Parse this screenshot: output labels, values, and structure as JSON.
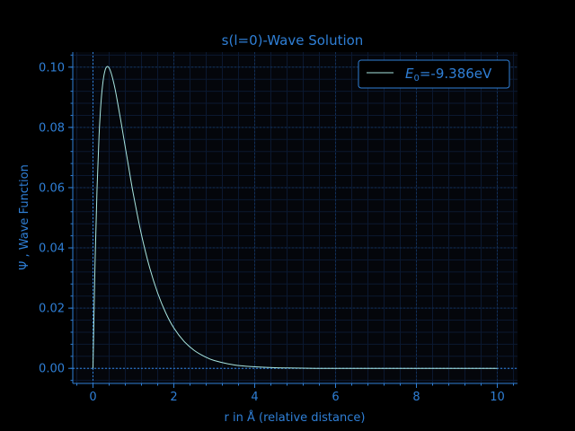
{
  "chart_data": {
    "type": "line",
    "title": "s(l=0)-Wave Solution",
    "xlabel": "r in Å (relative distance)",
    "ylabel": "Ψ , Wave Function",
    "xlim": [
      -0.5,
      10.5
    ],
    "ylim": [
      -0.005,
      0.105
    ],
    "xticks": [
      0,
      2,
      4,
      6,
      8,
      10
    ],
    "yticks": [
      0.0,
      0.02,
      0.04,
      0.06,
      0.08,
      0.1
    ],
    "xtick_labels": [
      "0",
      "2",
      "4",
      "6",
      "8",
      "10"
    ],
    "ytick_labels": [
      "0.00",
      "0.02",
      "0.04",
      "0.06",
      "0.08",
      "0.10"
    ],
    "grid": true,
    "legend_position": "top-right",
    "series": [
      {
        "name": "E0=-9.386eV",
        "legend_label": {
          "symbol": "E",
          "subscript": "0",
          "value": "=-9.386eV"
        },
        "color": "#a8e6e0",
        "x": [
          0,
          0.05,
          0.1,
          0.15,
          0.2,
          0.25,
          0.3,
          0.35,
          0.4,
          0.45,
          0.5,
          0.55,
          0.6,
          0.7,
          0.8,
          0.9,
          1.0,
          1.2,
          1.4,
          1.6,
          1.8,
          2.0,
          2.25,
          2.5,
          2.75,
          3.0,
          3.5,
          4.0,
          4.5,
          5.0,
          5.5,
          6.0,
          7.0,
          8.0,
          9.0,
          10.0
        ],
        "y": [
          0.0,
          0.0347,
          0.0596,
          0.0772,
          0.0886,
          0.0954,
          0.099,
          0.1002,
          0.0997,
          0.098,
          0.0955,
          0.0925,
          0.0889,
          0.0813,
          0.0733,
          0.0654,
          0.0577,
          0.0443,
          0.0335,
          0.025,
          0.0184,
          0.0134,
          0.009,
          0.006,
          0.004,
          0.0026,
          0.0011,
          0.0005,
          0.0002,
          0.0001,
          0.0,
          0.0,
          0.0,
          0.0,
          0.0,
          0.0
        ]
      }
    ]
  }
}
